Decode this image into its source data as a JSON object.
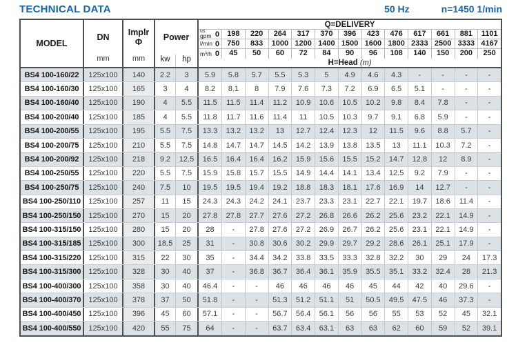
{
  "header": {
    "title": "TECHNICAL DATA",
    "frequency": "50 Hz",
    "speed": "n=1450 1/min"
  },
  "table": {
    "columns": {
      "model": "MODEL",
      "dn": "DN",
      "dn_unit": "mm",
      "implr_line1": "Implr",
      "implr_line2": "Φ",
      "implr_unit": "mm",
      "power": "Power",
      "power_kw": "kw",
      "power_hp": "hp"
    },
    "delivery": {
      "label": "Q=DELIVERY",
      "head_label": "H=Head",
      "head_unit": "(m)",
      "unit_rows": [
        {
          "sup": "us",
          "label": "gpm",
          "zero": "0",
          "values": [
            "198",
            "220",
            "264",
            "317",
            "370",
            "396",
            "423",
            "476",
            "617",
            "661",
            "881",
            "1101"
          ]
        },
        {
          "sup": "",
          "label": "l/min",
          "zero": "0",
          "values": [
            "750",
            "833",
            "1000",
            "1200",
            "1400",
            "1500",
            "1600",
            "1800",
            "2333",
            "2500",
            "3333",
            "4167"
          ]
        },
        {
          "sup": "",
          "label": "m³/h",
          "zero": "0",
          "values": [
            "45",
            "50",
            "60",
            "72",
            "84",
            "90",
            "96",
            "108",
            "140",
            "150",
            "200",
            "250"
          ]
        }
      ]
    },
    "rows": [
      {
        "model": "BS4 100-160/22",
        "dn": "125x100",
        "implr": "140",
        "kw": "2.2",
        "hp": "3",
        "heads": [
          "5.9",
          "5.8",
          "5.7",
          "5.5",
          "5.3",
          "5",
          "4.9",
          "4.6",
          "4.3",
          "-",
          "-",
          "-",
          "-"
        ]
      },
      {
        "model": "BS4 100-160/30",
        "dn": "125x100",
        "implr": "165",
        "kw": "3",
        "hp": "4",
        "heads": [
          "8.2",
          "8.1",
          "8",
          "7.9",
          "7.6",
          "7.3",
          "7.2",
          "6.9",
          "6.5",
          "5.1",
          "-",
          "-",
          "-"
        ]
      },
      {
        "model": "BS4 100-160/40",
        "dn": "125x100",
        "implr": "190",
        "kw": "4",
        "hp": "5.5",
        "heads": [
          "11.5",
          "11.5",
          "11.4",
          "11.2",
          "10.9",
          "10.6",
          "10.5",
          "10.2",
          "9.8",
          "8.4",
          "7.8",
          "-",
          "-"
        ]
      },
      {
        "model": "BS4 100-200/40",
        "dn": "125x100",
        "implr": "185",
        "kw": "4",
        "hp": "5.5",
        "heads": [
          "11.8",
          "11.7",
          "11.6",
          "11.4",
          "11",
          "10.5",
          "10.3",
          "9.7",
          "9.1",
          "6.8",
          "5.9",
          "-",
          "-"
        ]
      },
      {
        "model": "BS4 100-200/55",
        "dn": "125x100",
        "implr": "195",
        "kw": "5.5",
        "hp": "7.5",
        "heads": [
          "13.3",
          "13.2",
          "13.2",
          "13",
          "12.7",
          "12.4",
          "12.3",
          "12",
          "11.5",
          "9.6",
          "8.8",
          "5.7",
          "-"
        ]
      },
      {
        "model": "BS4 100-200/75",
        "dn": "125x100",
        "implr": "210",
        "kw": "5.5",
        "hp": "7.5",
        "heads": [
          "14.8",
          "14.7",
          "14.7",
          "14.5",
          "14.2",
          "13.9",
          "13.8",
          "13.5",
          "13",
          "11.1",
          "10.3",
          "7.2",
          "-"
        ]
      },
      {
        "model": "BS4 100-200/92",
        "dn": "125x100",
        "implr": "218",
        "kw": "9.2",
        "hp": "12.5",
        "heads": [
          "16.5",
          "16.4",
          "16.4",
          "16.2",
          "15.9",
          "15.6",
          "15.5",
          "15.2",
          "14.7",
          "12.8",
          "12",
          "8.9",
          "-"
        ]
      },
      {
        "model": "BS4 100-250/55",
        "dn": "125x100",
        "implr": "220",
        "kw": "5.5",
        "hp": "7.5",
        "heads": [
          "15.9",
          "15.8",
          "15.7",
          "15.5",
          "14.9",
          "14.4",
          "14.1",
          "13.4",
          "12.5",
          "9.2",
          "7.9",
          "-",
          "-"
        ]
      },
      {
        "model": "BS4 100-250/75",
        "dn": "125x100",
        "implr": "240",
        "kw": "7.5",
        "hp": "10",
        "heads": [
          "19.5",
          "19.5",
          "19.4",
          "19.2",
          "18.8",
          "18.3",
          "18.1",
          "17.6",
          "16.9",
          "14",
          "12.7",
          "-",
          "-"
        ]
      },
      {
        "model": "BS4 100-250/110",
        "dn": "125x100",
        "implr": "257",
        "kw": "11",
        "hp": "15",
        "heads": [
          "24.3",
          "24.3",
          "24.2",
          "24.1",
          "23.7",
          "23.3",
          "23.1",
          "22.7",
          "22.1",
          "19.7",
          "18.6",
          "11.4",
          "-"
        ]
      },
      {
        "model": "BS4 100-250/150",
        "dn": "125x100",
        "implr": "270",
        "kw": "15",
        "hp": "20",
        "heads": [
          "27.8",
          "27.8",
          "27.7",
          "27.6",
          "27.2",
          "26.8",
          "26.6",
          "26.2",
          "25.6",
          "23.2",
          "22.1",
          "14.9",
          "-"
        ]
      },
      {
        "model": "BS4 100-315/150",
        "dn": "125x100",
        "implr": "280",
        "kw": "15",
        "hp": "20",
        "heads": [
          "28",
          "-",
          "27.8",
          "27.6",
          "27.2",
          "26.9",
          "26.7",
          "26.2",
          "25.6",
          "23.1",
          "22.1",
          "14.9",
          "-"
        ]
      },
      {
        "model": "BS4 100-315/185",
        "dn": "125x100",
        "implr": "300",
        "kw": "18.5",
        "hp": "25",
        "heads": [
          "31",
          "-",
          "30.8",
          "30.6",
          "30.2",
          "29.9",
          "29.7",
          "29.2",
          "28.6",
          "26.1",
          "25.1",
          "17.9",
          "-"
        ]
      },
      {
        "model": "BS4 100-315/220",
        "dn": "125x100",
        "implr": "315",
        "kw": "22",
        "hp": "30",
        "heads": [
          "35",
          "-",
          "34.4",
          "34.2",
          "33.8",
          "33.5",
          "33.3",
          "32.8",
          "32.2",
          "30",
          "29",
          "24",
          "17.3"
        ]
      },
      {
        "model": "BS4 100-315/300",
        "dn": "125x100",
        "implr": "328",
        "kw": "30",
        "hp": "40",
        "heads": [
          "37",
          "-",
          "36.8",
          "36.7",
          "36.4",
          "36.1",
          "35.9",
          "35.5",
          "35.1",
          "33.2",
          "32.4",
          "28",
          "21.3"
        ]
      },
      {
        "model": "BS4 100-400/300",
        "dn": "125x100",
        "implr": "358",
        "kw": "30",
        "hp": "40",
        "heads": [
          "46.4",
          "-",
          "-",
          "46",
          "46",
          "46",
          "46",
          "45",
          "44",
          "42",
          "40",
          "29.6",
          "-"
        ]
      },
      {
        "model": "BS4 100-400/370",
        "dn": "125x100",
        "implr": "378",
        "kw": "37",
        "hp": "50",
        "heads": [
          "51.8",
          "-",
          "-",
          "51.3",
          "51.2",
          "51.1",
          "51",
          "50.5",
          "49.5",
          "47.5",
          "46",
          "37.3",
          "-"
        ]
      },
      {
        "model": "BS4 100-400/450",
        "dn": "125x100",
        "implr": "396",
        "kw": "45",
        "hp": "60",
        "heads": [
          "57.1",
          "-",
          "-",
          "56.7",
          "56.4",
          "56.1",
          "56",
          "56",
          "55",
          "53",
          "52",
          "45",
          "32.1"
        ]
      },
      {
        "model": "BS4 100-400/550",
        "dn": "125x100",
        "implr": "420",
        "kw": "55",
        "hp": "75",
        "heads": [
          "64",
          "-",
          "-",
          "63.7",
          "63.4",
          "63.1",
          "63",
          "63",
          "62",
          "60",
          "59",
          "52",
          "39.1"
        ]
      }
    ]
  },
  "colors": {
    "accent_blue": "#1565a9",
    "stripe": "#dce1e6",
    "border_heavy": "#4e4f51",
    "border_light": "#c3c7cb"
  }
}
